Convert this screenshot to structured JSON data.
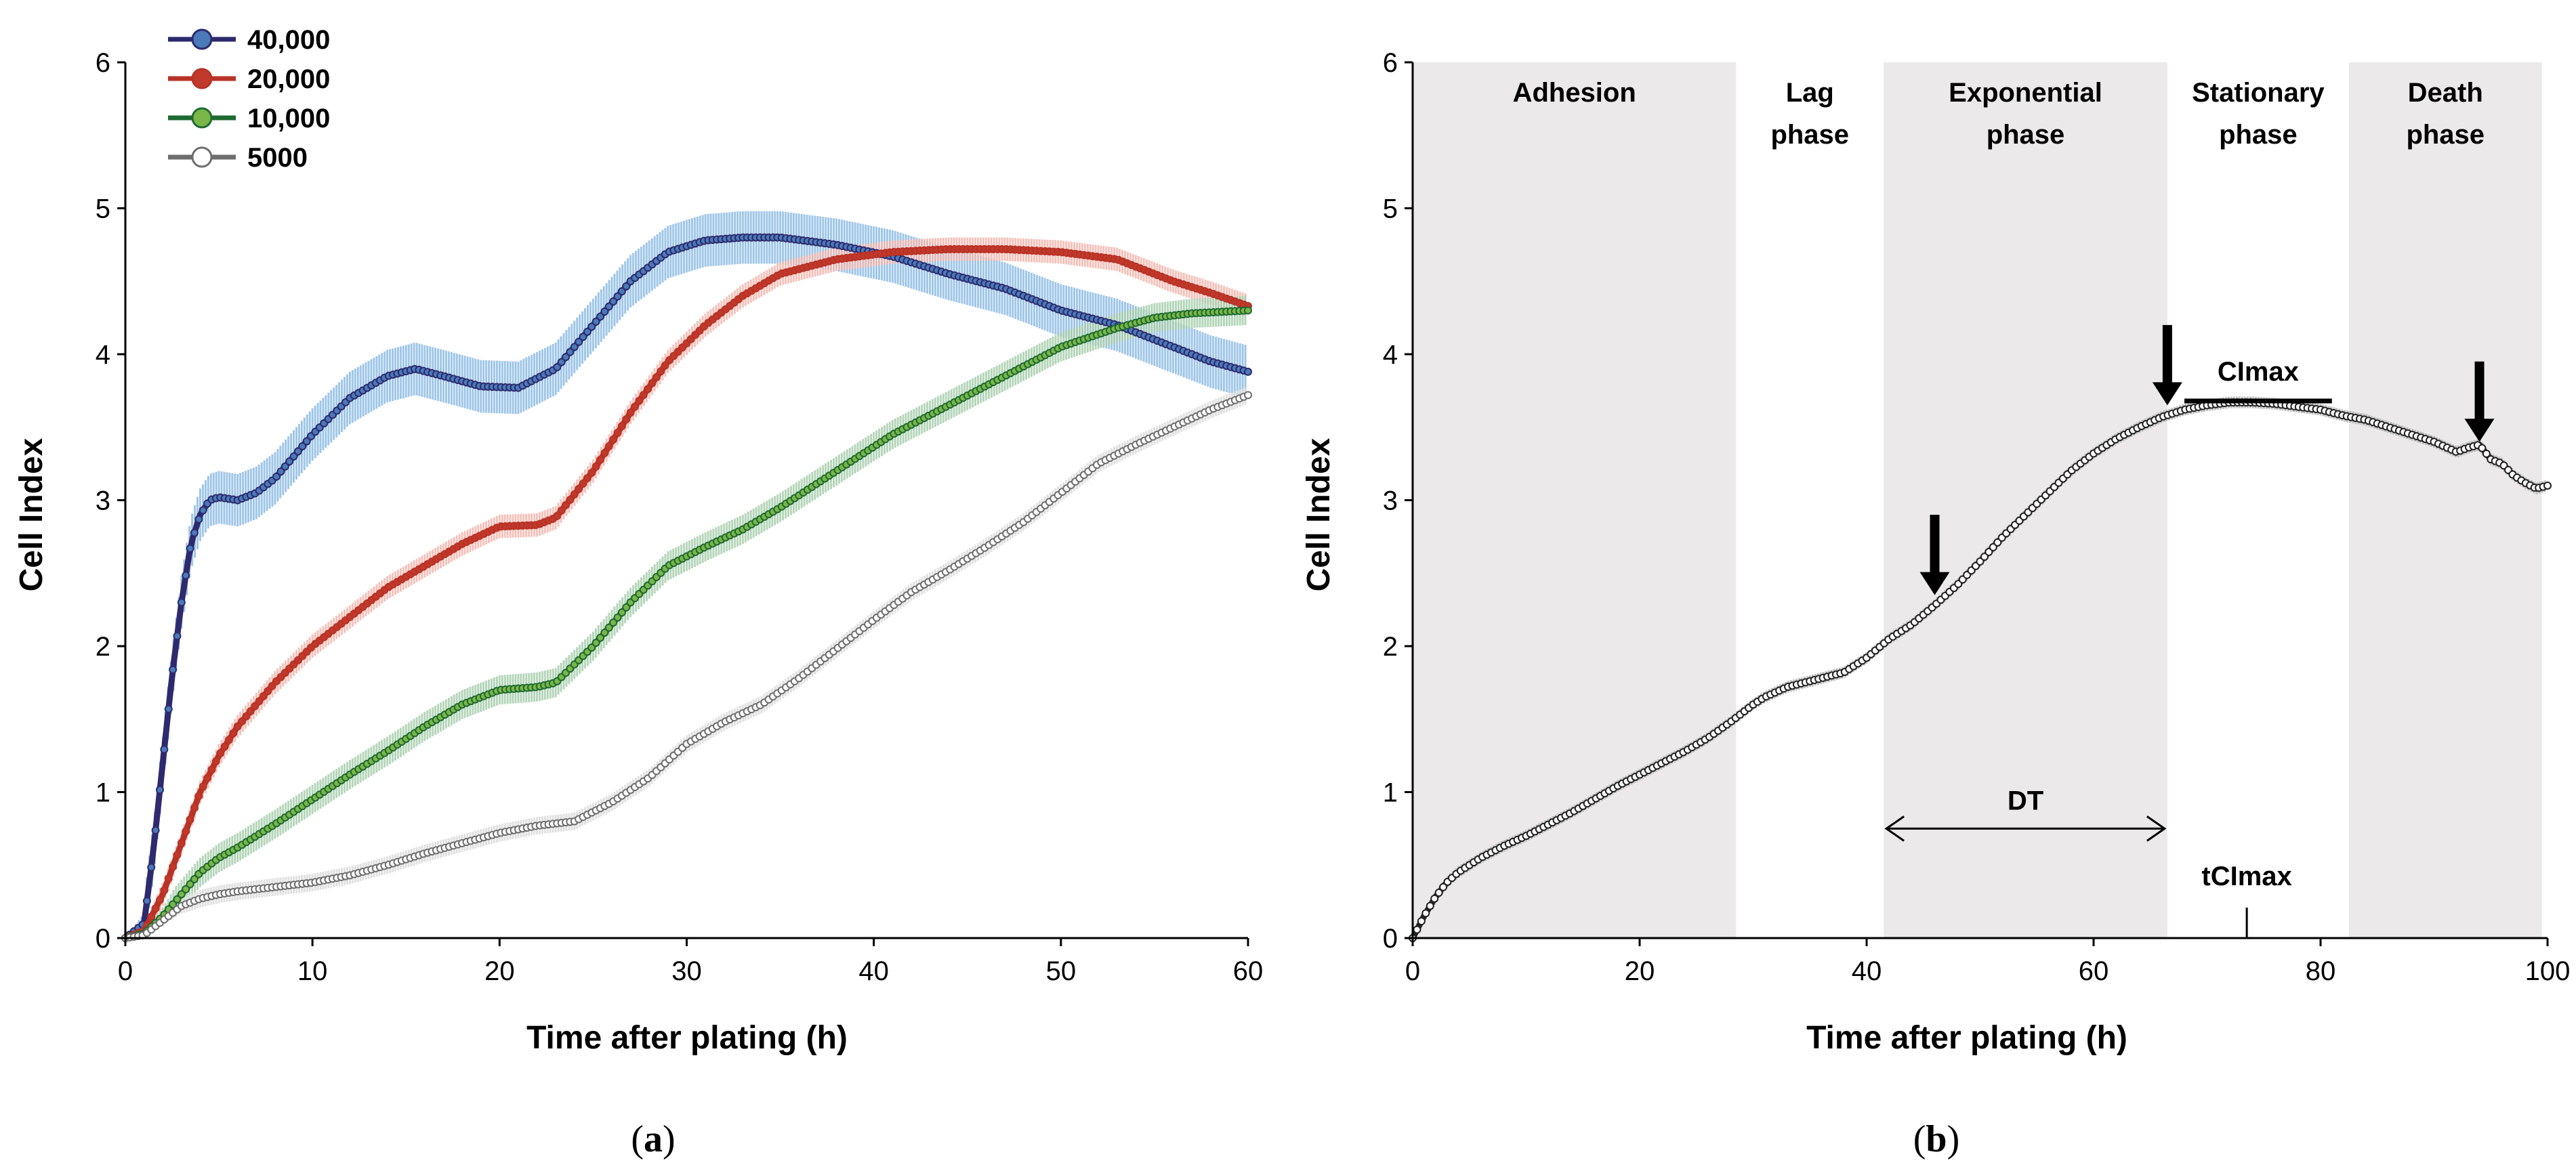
{
  "chart_data": [
    {
      "type": "line",
      "panel": "a",
      "xlabel": "Time after plating (h)",
      "ylabel": "Cell Index",
      "xlim": [
        0,
        60
      ],
      "ylim": [
        0,
        6
      ],
      "xticks": [
        0,
        10,
        20,
        30,
        40,
        50,
        60
      ],
      "yticks": [
        0,
        1,
        2,
        3,
        4,
        5,
        6
      ],
      "legend_position": "top-left",
      "series": [
        {
          "name": "40,000",
          "color": "#2e2a6e",
          "marker_color": "#4a7ab8",
          "band_color": "#8fbde3",
          "x": [
            0,
            1,
            1.5,
            2,
            2.5,
            3,
            3.5,
            4,
            4.5,
            5,
            6,
            7,
            8,
            10,
            12,
            14,
            15.5,
            17,
            19,
            21,
            23,
            25,
            27,
            29,
            31,
            33,
            35,
            38,
            41,
            44,
            47,
            50,
            53,
            56,
            58,
            60
          ],
          "y": [
            0,
            0.1,
            0.6,
            1.2,
            1.8,
            2.3,
            2.7,
            2.9,
            3.0,
            3.02,
            3.0,
            3.05,
            3.15,
            3.45,
            3.7,
            3.85,
            3.9,
            3.85,
            3.78,
            3.77,
            3.9,
            4.2,
            4.5,
            4.7,
            4.78,
            4.8,
            4.8,
            4.75,
            4.67,
            4.55,
            4.45,
            4.3,
            4.2,
            4.05,
            3.95,
            3.88
          ],
          "band_halfwidth": 0.18
        },
        {
          "name": "20,000",
          "color": "#b83226",
          "marker_color": "#c0392b",
          "band_color": "#f2b8b0",
          "x": [
            0,
            1,
            2,
            3,
            4,
            5,
            6,
            8,
            10,
            12,
            14,
            16,
            18,
            20,
            22,
            23,
            25,
            27,
            29,
            31,
            33,
            35,
            38,
            41,
            44,
            47,
            50,
            53,
            56,
            58,
            60
          ],
          "y": [
            0,
            0.05,
            0.3,
            0.65,
            1.0,
            1.25,
            1.45,
            1.75,
            2.0,
            2.2,
            2.4,
            2.55,
            2.7,
            2.82,
            2.83,
            2.88,
            3.2,
            3.6,
            3.95,
            4.2,
            4.4,
            4.55,
            4.65,
            4.7,
            4.72,
            4.72,
            4.7,
            4.65,
            4.5,
            4.42,
            4.33
          ],
          "band_halfwidth": 0.08
        },
        {
          "name": "10,000",
          "color": "#1e6a32",
          "marker_color": "#7ab648",
          "band_color": "#a9cfae",
          "x": [
            0,
            1,
            2,
            3,
            4,
            5,
            6,
            8,
            10,
            12,
            14,
            16,
            18,
            20,
            22,
            23,
            25,
            27,
            29,
            31,
            33,
            35,
            38,
            41,
            44,
            47,
            50,
            53,
            55,
            57,
            60
          ],
          "y": [
            0,
            0.03,
            0.15,
            0.3,
            0.45,
            0.55,
            0.62,
            0.78,
            0.95,
            1.12,
            1.28,
            1.45,
            1.6,
            1.7,
            1.72,
            1.75,
            2.0,
            2.3,
            2.55,
            2.68,
            2.8,
            2.95,
            3.2,
            3.45,
            3.65,
            3.85,
            4.05,
            4.18,
            4.25,
            4.28,
            4.3
          ],
          "band_halfwidth": 0.1
        },
        {
          "name": "5000",
          "color": "#6e6e6e",
          "marker_color": "#ffffff",
          "band_color": "#dcdcdc",
          "x": [
            0,
            1,
            2,
            3,
            4,
            5,
            6,
            8,
            10,
            12,
            14,
            16,
            18,
            20,
            22,
            24,
            26,
            28,
            30,
            32,
            34,
            36,
            38,
            40,
            42,
            44,
            46,
            48,
            50,
            52,
            54,
            56,
            58,
            60
          ],
          "y": [
            0,
            0.02,
            0.12,
            0.22,
            0.27,
            0.3,
            0.32,
            0.35,
            0.38,
            0.43,
            0.5,
            0.58,
            0.65,
            0.72,
            0.77,
            0.8,
            0.93,
            1.1,
            1.33,
            1.48,
            1.6,
            1.78,
            1.98,
            2.18,
            2.37,
            2.52,
            2.68,
            2.85,
            3.05,
            3.25,
            3.38,
            3.5,
            3.62,
            3.72
          ],
          "band_halfwidth": 0.06
        }
      ]
    },
    {
      "type": "line",
      "panel": "b",
      "xlabel": "Time after plating (h)",
      "ylabel": "Cell Index",
      "xlim": [
        0,
        100
      ],
      "ylim": [
        0,
        6
      ],
      "xticks": [
        0,
        20,
        40,
        60,
        80,
        100
      ],
      "yticks": [
        0,
        1,
        2,
        3,
        4,
        5,
        6
      ],
      "phases": [
        {
          "label_line1": "Adhesion",
          "label_line2": "",
          "x0": 0,
          "x1": 28.5,
          "shaded": true
        },
        {
          "label_line1": "Lag",
          "label_line2": "phase",
          "x0": 28.5,
          "x1": 41.5,
          "shaded": false
        },
        {
          "label_line1": "Exponential",
          "label_line2": "phase",
          "x0": 41.5,
          "x1": 66.5,
          "shaded": true
        },
        {
          "label_line1": "Stationary",
          "label_line2": "phase",
          "x0": 66.5,
          "x1": 82.5,
          "shaded": false
        },
        {
          "label_line1": "Death",
          "label_line2": "phase",
          "x0": 82.5,
          "x1": 99.5,
          "shaded": true
        }
      ],
      "series": [
        {
          "name": "Cell Index",
          "color": "#222222",
          "marker_color": "#ffffff",
          "band_color": "#b5b5b5",
          "x": [
            0,
            1,
            2,
            3,
            4,
            6,
            8,
            10,
            12,
            14,
            16,
            18,
            20,
            22,
            24,
            26,
            28,
            30,
            31,
            33,
            36,
            38,
            40,
            42,
            44,
            46,
            48,
            50,
            52,
            54,
            56,
            58,
            60,
            62,
            64,
            66,
            68,
            70,
            72,
            74,
            76,
            78,
            80,
            82,
            84,
            86,
            88,
            90,
            92,
            93,
            94,
            95,
            96,
            97,
            98,
            99,
            100
          ],
          "y": [
            0,
            0.15,
            0.28,
            0.38,
            0.45,
            0.55,
            0.63,
            0.7,
            0.78,
            0.86,
            0.95,
            1.04,
            1.12,
            1.2,
            1.28,
            1.37,
            1.48,
            1.6,
            1.65,
            1.72,
            1.78,
            1.82,
            1.92,
            2.05,
            2.15,
            2.28,
            2.42,
            2.58,
            2.75,
            2.9,
            3.05,
            3.2,
            3.32,
            3.42,
            3.5,
            3.57,
            3.62,
            3.65,
            3.67,
            3.67,
            3.66,
            3.64,
            3.62,
            3.58,
            3.55,
            3.5,
            3.45,
            3.4,
            3.33,
            3.36,
            3.38,
            3.28,
            3.25,
            3.17,
            3.12,
            3.08,
            3.1
          ],
          "band_halfwidth": 0.04
        }
      ],
      "annotations": {
        "cimax_label": "CImax",
        "cimax_bar": {
          "x0": 68,
          "x1": 81,
          "y": 3.68
        },
        "dt_label": "DT",
        "dt_arrow": {
          "x0": 41.5,
          "x1": 66.5,
          "y": 0.75
        },
        "tcimax_label": "tCImax",
        "tcimax_x": 73.5,
        "arrows_down": [
          {
            "x": 46,
            "y_tip": 2.35,
            "y_top": 2.9
          },
          {
            "x": 66.5,
            "y_tip": 3.65,
            "y_top": 4.2
          },
          {
            "x": 94,
            "y_tip": 3.4,
            "y_top": 3.95
          }
        ]
      }
    }
  ],
  "panel_labels": {
    "a_open": "(",
    "a_letter": "a",
    "a_close": ")",
    "b_open": "(",
    "b_letter": "b",
    "b_close": ")"
  }
}
